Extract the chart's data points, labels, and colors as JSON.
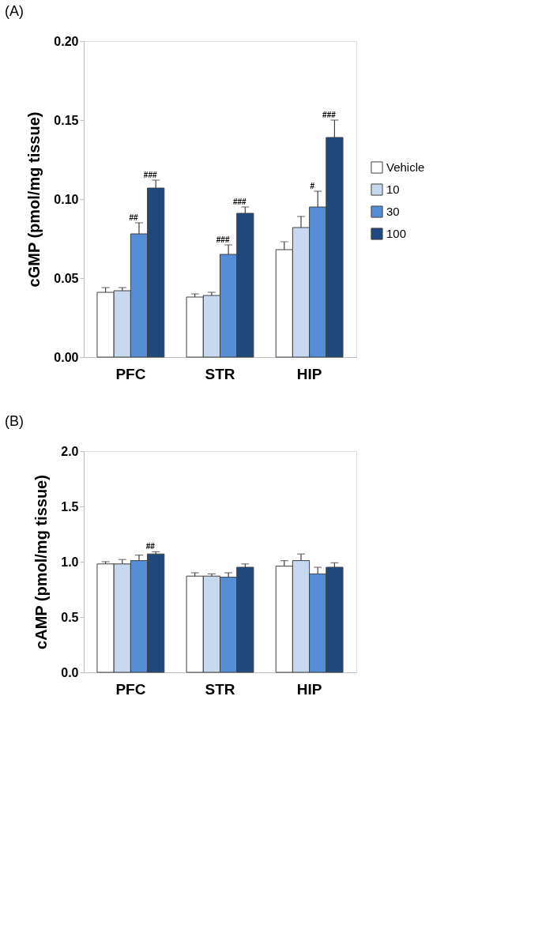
{
  "chart_data": [
    {
      "type": "bar",
      "title": "(A)",
      "ylabel": "cGMP (pmol/mg tissue)",
      "categories": [
        "PFC",
        "STR",
        "HIP"
      ],
      "series": [
        {
          "name": "Vehicle",
          "color": "#ffffff",
          "values": [
            0.041,
            0.038,
            0.068
          ],
          "errors": [
            0.003,
            0.002,
            0.005
          ]
        },
        {
          "name": "10",
          "color": "#c6d9f0",
          "values": [
            0.042,
            0.039,
            0.082
          ],
          "errors": [
            0.002,
            0.002,
            0.007
          ]
        },
        {
          "name": "30",
          "color": "#558ed5",
          "values": [
            0.078,
            0.065,
            0.095
          ],
          "errors": [
            0.007,
            0.006,
            0.01
          ],
          "value_labels": [
            "##",
            "###",
            "#"
          ]
        },
        {
          "name": "100",
          "color": "#1f497d",
          "values": [
            0.107,
            0.091,
            0.139
          ],
          "errors": [
            0.005,
            0.004,
            0.011
          ],
          "value_labels": [
            "###",
            "###",
            "###"
          ]
        }
      ],
      "ylim": [
        0,
        0.2
      ],
      "yticks": [
        {
          "value": 0,
          "label": "0.00"
        },
        {
          "value": 0.05,
          "label": "0.05"
        },
        {
          "value": 0.1,
          "label": "0.10"
        },
        {
          "value": 0.15,
          "label": "0.15"
        },
        {
          "value": 0.2,
          "label": "0.20"
        }
      ],
      "legend": "right",
      "grid": false
    },
    {
      "type": "bar",
      "title": "(B)",
      "ylabel": "cAMP (pmol/mg tissue)",
      "categories": [
        "PFC",
        "STR",
        "HIP"
      ],
      "series": [
        {
          "name": "Vehicle",
          "color": "#ffffff",
          "values": [
            0.98,
            0.87,
            0.96
          ],
          "errors": [
            0.02,
            0.03,
            0.05
          ]
        },
        {
          "name": "10",
          "color": "#c6d9f0",
          "values": [
            0.98,
            0.87,
            1.01
          ],
          "errors": [
            0.04,
            0.02,
            0.06
          ]
        },
        {
          "name": "30",
          "color": "#558ed5",
          "values": [
            1.01,
            0.86,
            0.89
          ],
          "errors": [
            0.05,
            0.04,
            0.06
          ]
        },
        {
          "name": "100",
          "color": "#1f497d",
          "values": [
            1.07,
            0.95,
            0.95
          ],
          "errors": [
            0.02,
            0.03,
            0.04
          ],
          "value_labels": [
            "##",
            null,
            null
          ]
        }
      ],
      "ylim": [
        0,
        2.0
      ],
      "yticks": [
        {
          "value": 0,
          "label": "0.0"
        },
        {
          "value": 0.5,
          "label": "0.5"
        },
        {
          "value": 1.0,
          "label": "1.0"
        },
        {
          "value": 1.5,
          "label": "1.5"
        },
        {
          "value": 2.0,
          "label": "2.0"
        }
      ],
      "legend": "right",
      "grid": false
    }
  ]
}
